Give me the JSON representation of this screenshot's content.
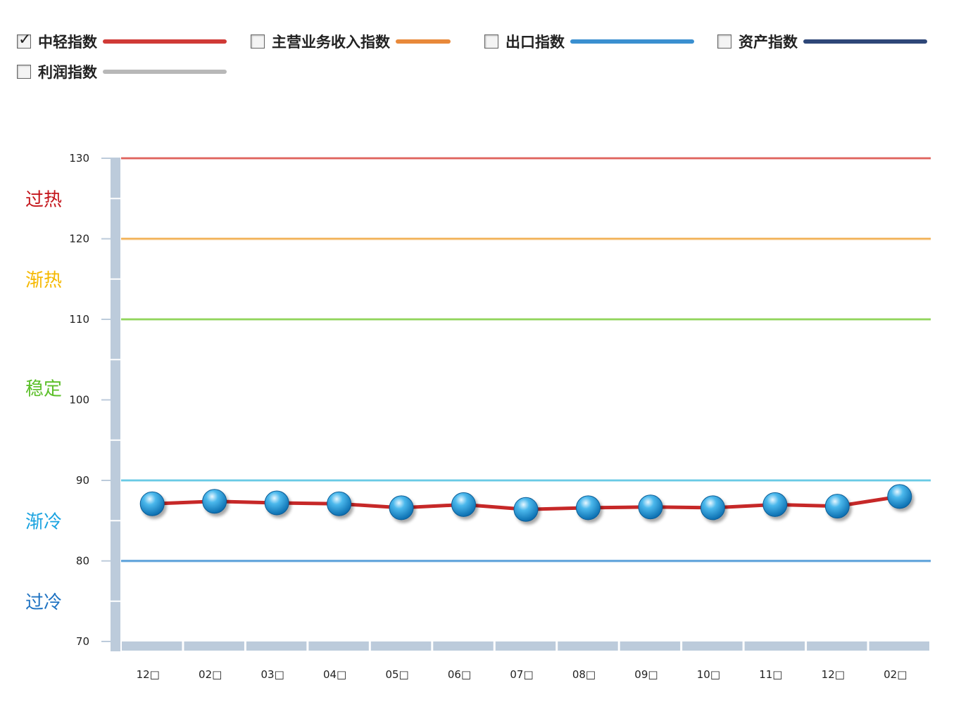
{
  "legend": [
    {
      "label": "中轻指数",
      "checked": true,
      "color": "#d03a36"
    },
    {
      "label": "主营业务收入指数",
      "checked": false,
      "color": "#e8893a"
    },
    {
      "label": "出口指数",
      "checked": false,
      "color": "#3a8fd0"
    },
    {
      "label": "资产指数",
      "checked": false,
      "color": "#2e4778"
    },
    {
      "label": "利润指数",
      "checked": false,
      "color": "#b8b8b8"
    }
  ],
  "zones": [
    {
      "label": "过热",
      "color": "#c4161c"
    },
    {
      "label": "渐热",
      "color": "#f5b800"
    },
    {
      "label": "稳定",
      "color": "#5cbf2a"
    },
    {
      "label": "渐冷",
      "color": "#1aa3e0"
    },
    {
      "label": "过冷",
      "color": "#1f73c2"
    }
  ],
  "chart_data": {
    "type": "line",
    "categories": [
      "12□",
      "02□",
      "03□",
      "04□",
      "05□",
      "06□",
      "07□",
      "08□",
      "09□",
      "10□",
      "11□",
      "12□",
      "02□"
    ],
    "series": [
      {
        "name": "中轻指数",
        "color": "#c62828",
        "values": [
          87.1,
          87.4,
          87.2,
          87.1,
          86.6,
          87.0,
          86.4,
          86.6,
          86.7,
          86.6,
          87.0,
          86.8,
          88.0
        ]
      }
    ],
    "ylim": [
      70,
      130
    ],
    "yticks": [
      70,
      80,
      90,
      100,
      110,
      120,
      130
    ],
    "thresholds": [
      {
        "value": 130,
        "color": "#d9463f"
      },
      {
        "value": 120,
        "color": "#f0a030"
      },
      {
        "value": 110,
        "color": "#7ccd3c"
      },
      {
        "value": 90,
        "color": "#4cc0e0"
      },
      {
        "value": 80,
        "color": "#2a86cf"
      }
    ],
    "point_color": "#1a8fd0"
  }
}
